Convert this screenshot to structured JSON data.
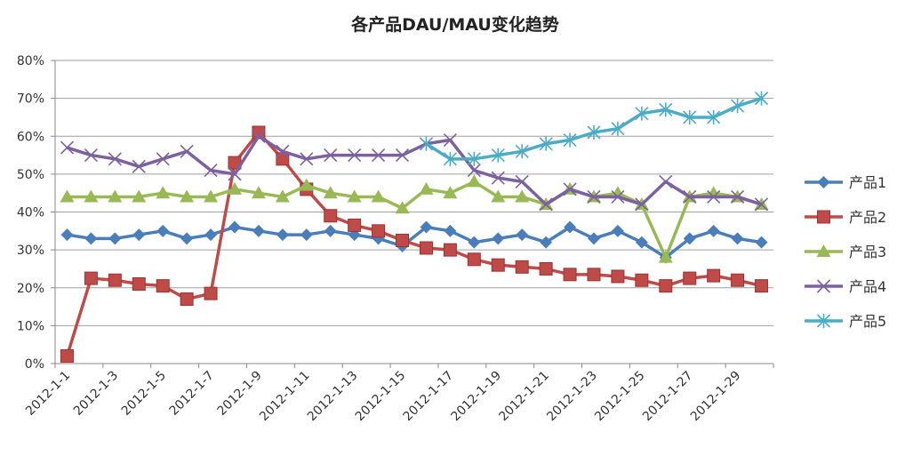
{
  "chart_data": {
    "type": "line",
    "title": "各产品DAU/MAU变化趋势",
    "xlabel": "",
    "ylabel": "",
    "ylim": [
      0,
      0.8
    ],
    "yticks": [
      "0%",
      "10%",
      "20%",
      "30%",
      "40%",
      "50%",
      "60%",
      "70%",
      "80%"
    ],
    "grid": true,
    "legend": "right",
    "categories": [
      "2012-1-1",
      "2012-1-2",
      "2012-1-3",
      "2012-1-4",
      "2012-1-5",
      "2012-1-6",
      "2012-1-7",
      "2012-1-8",
      "2012-1-9",
      "2012-1-10",
      "2012-1-11",
      "2012-1-12",
      "2012-1-13",
      "2012-1-14",
      "2012-1-15",
      "2012-1-16",
      "2012-1-17",
      "2012-1-18",
      "2012-1-19",
      "2012-1-20",
      "2012-1-21",
      "2012-1-22",
      "2012-1-23",
      "2012-1-24",
      "2012-1-25",
      "2012-1-26",
      "2012-1-27",
      "2012-1-28",
      "2012-1-29",
      "2012-1-30"
    ],
    "xtick_labels": [
      "2012-1-1",
      "2012-1-3",
      "2012-1-5",
      "2012-1-7",
      "2012-1-9",
      "2012-1-11",
      "2012-1-13",
      "2012-1-15",
      "2012-1-17",
      "2012-1-19",
      "2012-1-21",
      "2012-1-23",
      "2012-1-25",
      "2012-1-27",
      "2012-1-29"
    ],
    "series": [
      {
        "name": "产品1",
        "color": "#4a7ebb",
        "marker": "diamond",
        "values": [
          0.34,
          0.33,
          0.33,
          0.34,
          0.35,
          0.33,
          0.34,
          0.36,
          0.35,
          0.34,
          0.34,
          0.35,
          0.34,
          0.33,
          0.31,
          0.36,
          0.35,
          0.32,
          0.33,
          0.34,
          0.32,
          0.36,
          0.33,
          0.35,
          0.32,
          0.28,
          0.33,
          0.35,
          0.33,
          0.32
        ]
      },
      {
        "name": "产品2",
        "color": "#be4b48",
        "marker": "square",
        "values": [
          0.02,
          0.225,
          0.22,
          0.21,
          0.205,
          0.17,
          0.185,
          0.53,
          0.61,
          0.54,
          0.46,
          0.39,
          0.365,
          0.35,
          0.325,
          0.305,
          0.3,
          0.275,
          0.26,
          0.255,
          0.25,
          0.235,
          0.235,
          0.23,
          0.22,
          0.205,
          0.225,
          0.232,
          0.22,
          0.205
        ]
      },
      {
        "name": "产品3",
        "color": "#98b954",
        "marker": "triangle",
        "values": [
          0.44,
          0.44,
          0.44,
          0.44,
          0.45,
          0.44,
          0.44,
          0.46,
          0.45,
          0.44,
          0.47,
          0.45,
          0.44,
          0.44,
          0.41,
          0.46,
          0.45,
          0.48,
          0.44,
          0.44,
          0.42,
          0.46,
          0.44,
          0.45,
          0.42,
          0.28,
          0.44,
          0.45,
          0.44,
          0.42
        ]
      },
      {
        "name": "产品4",
        "color": "#7d60a0",
        "marker": "x",
        "values": [
          0.57,
          0.55,
          0.54,
          0.52,
          0.54,
          0.56,
          0.51,
          0.5,
          0.6,
          0.56,
          0.54,
          0.55,
          0.55,
          0.55,
          0.55,
          0.58,
          0.59,
          0.51,
          0.49,
          0.48,
          0.42,
          0.46,
          0.44,
          0.44,
          0.42,
          0.48,
          0.44,
          0.44,
          0.44,
          0.42
        ]
      },
      {
        "name": "产品5",
        "color": "#4bacc6",
        "marker": "star",
        "values": [
          null,
          null,
          null,
          null,
          null,
          null,
          null,
          null,
          null,
          null,
          null,
          null,
          null,
          null,
          null,
          0.58,
          0.54,
          0.54,
          0.55,
          0.56,
          0.58,
          0.59,
          0.61,
          0.62,
          0.66,
          0.67,
          0.65,
          0.65,
          0.68,
          0.7
        ]
      }
    ]
  }
}
